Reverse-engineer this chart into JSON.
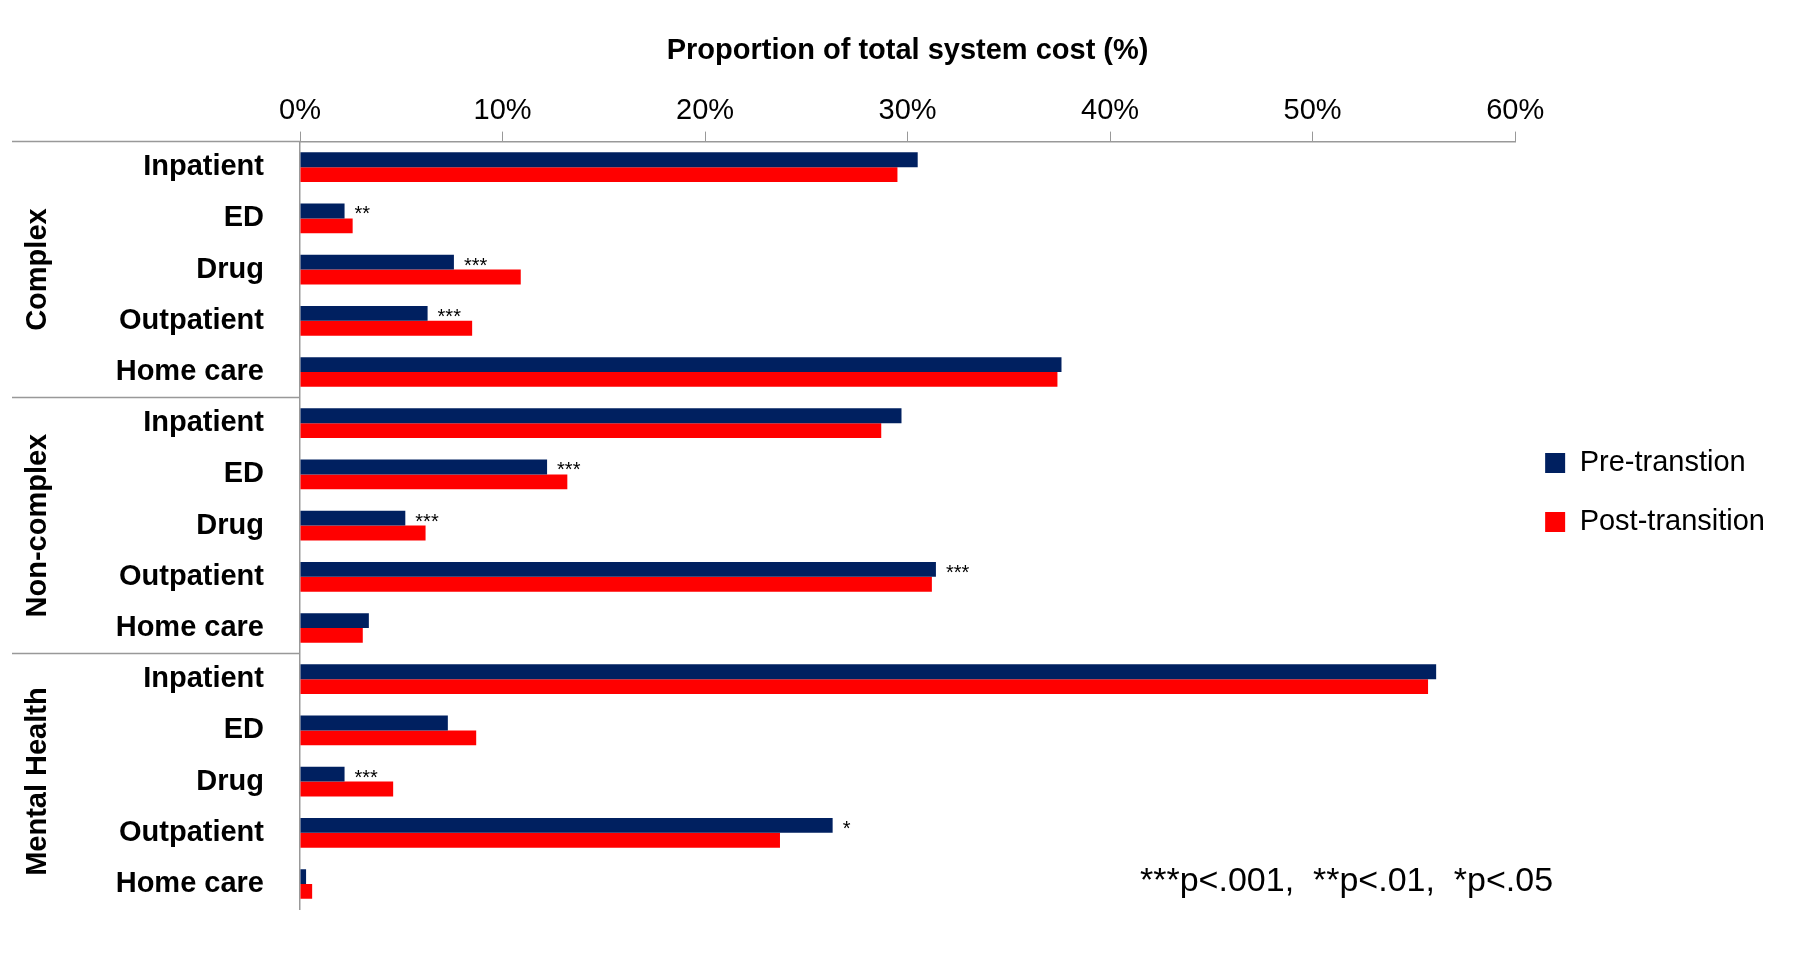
{
  "chart_data": {
    "type": "bar",
    "orientation": "horizontal",
    "xlabel": "Proportion of total system cost (%)",
    "categories": [
      "Inpatient",
      "ED",
      "Drug",
      "Outpatient",
      "Home care",
      "Inpatient",
      "ED",
      "Drug",
      "Outpatient",
      "Home care",
      "Inpatient",
      "ED",
      "Drug",
      "Outpatient",
      "Home care"
    ],
    "series": [
      {
        "name": "Pre-transtion",
        "color": "#002060",
        "values": [
          30.5,
          2.2,
          7.6,
          6.3,
          37.6,
          29.7,
          12.2,
          5.2,
          31.4,
          3.4,
          56.1,
          7.3,
          2.2,
          26.3,
          0.3
        ],
        "value_labels": [
          null,
          "**",
          "***",
          "***",
          null,
          null,
          "***",
          "***",
          "***",
          null,
          null,
          null,
          "***",
          "*",
          null
        ]
      },
      {
        "name": "Post-transition",
        "color": "#ff0000",
        "values": [
          29.5,
          2.6,
          10.9,
          8.5,
          37.4,
          28.7,
          13.2,
          6.2,
          31.2,
          3.1,
          55.7,
          8.7,
          4.6,
          23.7,
          0.6
        ]
      }
    ],
    "xlim": [
      0,
      60
    ],
    "xticks": [
      {
        "value": 0,
        "label": "0%"
      },
      {
        "value": 10,
        "label": "10%"
      },
      {
        "value": 20,
        "label": "20%"
      },
      {
        "value": 30,
        "label": "30%"
      },
      {
        "value": 40,
        "label": "40%"
      },
      {
        "value": 50,
        "label": "50%"
      },
      {
        "value": 60,
        "label": "60%"
      }
    ],
    "legend": "right",
    "annotations": [
      "Complex",
      "Non-complex",
      "Mental Health",
      "***p<.001,  **p<.01,  *p<.05"
    ]
  }
}
